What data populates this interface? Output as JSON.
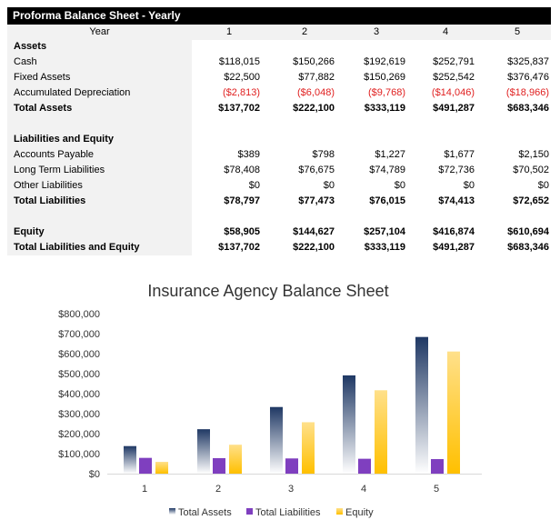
{
  "table": {
    "title": "Proforma Balance Sheet - Yearly",
    "year_label": "Year",
    "years": [
      "1",
      "2",
      "3",
      "4",
      "5"
    ],
    "rows": [
      {
        "label": "Assets",
        "bold": true,
        "values": []
      },
      {
        "label": "Cash",
        "values": [
          "$118,015",
          "$150,266",
          "$192,619",
          "$252,791",
          "$325,837"
        ]
      },
      {
        "label": "Fixed Assets",
        "values": [
          "$22,500",
          "$77,882",
          "$150,269",
          "$252,542",
          "$376,476"
        ]
      },
      {
        "label": "Accumulated Depreciation",
        "negative": true,
        "values": [
          "($2,813)",
          "($6,048)",
          "($9,768)",
          "($14,046)",
          "($18,966)"
        ]
      },
      {
        "label": "Total Assets",
        "bold": true,
        "values": [
          "$137,702",
          "$222,100",
          "$333,119",
          "$491,287",
          "$683,346"
        ]
      },
      {
        "label": "",
        "values": []
      },
      {
        "label": "Liabilities and Equity",
        "bold": true,
        "values": []
      },
      {
        "label": "Accounts Payable",
        "values": [
          "$389",
          "$798",
          "$1,227",
          "$1,677",
          "$2,150"
        ]
      },
      {
        "label": "Long Term Liabilities",
        "values": [
          "$78,408",
          "$76,675",
          "$74,789",
          "$72,736",
          "$70,502"
        ]
      },
      {
        "label": "Other Liabilities",
        "values": [
          "$0",
          "$0",
          "$0",
          "$0",
          "$0"
        ]
      },
      {
        "label": "Total Liabilities",
        "bold": true,
        "values": [
          "$78,797",
          "$77,473",
          "$76,015",
          "$74,413",
          "$72,652"
        ]
      },
      {
        "label": "",
        "values": []
      },
      {
        "label": "Equity",
        "bold": true,
        "values": [
          "$58,905",
          "$144,627",
          "$257,104",
          "$416,874",
          "$610,694"
        ]
      },
      {
        "label": "Total Liabilities and Equity",
        "bold": true,
        "values": [
          "$137,702",
          "$222,100",
          "$333,119",
          "$491,287",
          "$683,346"
        ]
      }
    ],
    "negative_color": "#e02020"
  },
  "chart_data": {
    "type": "bar",
    "title": "Insurance Agency Balance Sheet",
    "categories": [
      "1",
      "2",
      "3",
      "4",
      "5"
    ],
    "series": [
      {
        "name": "Total Assets",
        "values": [
          137702,
          222100,
          333119,
          491287,
          683346
        ],
        "color": "#1f3864"
      },
      {
        "name": "Total Liabilities",
        "values": [
          78797,
          77473,
          76015,
          74413,
          72652
        ],
        "color": "#7f3fbf"
      },
      {
        "name": "Equity",
        "values": [
          58905,
          144627,
          257104,
          416874,
          610694
        ],
        "color": "#ffc000"
      }
    ],
    "ylim": [
      0,
      800000
    ],
    "yticks": [
      "$0",
      "$100,000",
      "$200,000",
      "$300,000",
      "$400,000",
      "$500,000",
      "$600,000",
      "$700,000",
      "$800,000"
    ],
    "grid": false,
    "legend": "bottom"
  }
}
